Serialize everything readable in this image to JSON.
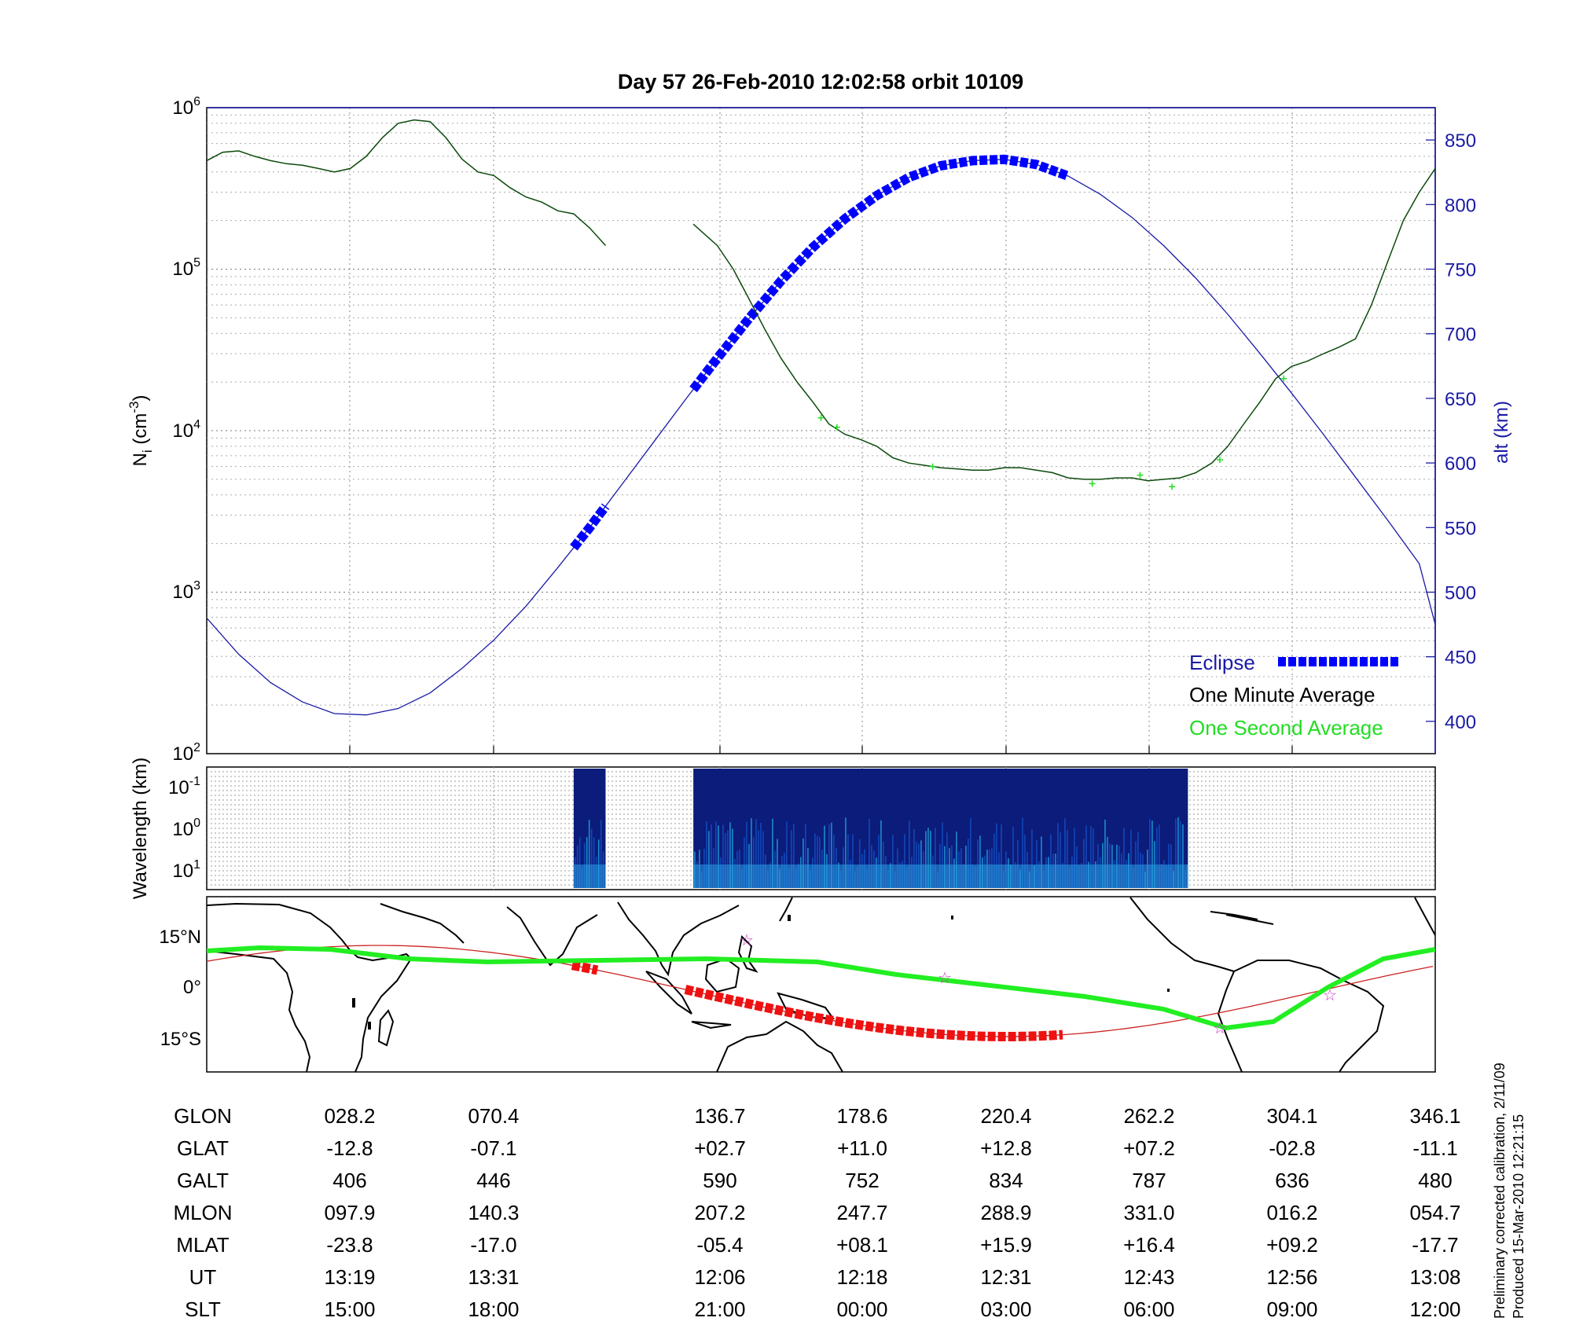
{
  "title": "Day 57  26-Feb-2010 12:02:58   orbit 10109",
  "colors": {
    "altitude": "#1a1aa6",
    "eclipse": "#0000ff",
    "one_minute": "#0b4a0b",
    "one_second": "#22dd22",
    "track": "#cc2222",
    "dip_equator": "#22ee22",
    "spectrogram_bg": "#0b1c7a",
    "stars": "#cc33cc"
  },
  "chart_data": [
    {
      "type": "line",
      "name": "density",
      "ylabel": "N_i (cm^-3)",
      "y_log": true,
      "ylim": [
        100,
        1000000
      ],
      "y_ticks": [
        "10^2",
        "10^3",
        "10^4",
        "10^5",
        "10^6"
      ],
      "y2label": "alt (km)",
      "y2lim": [
        375,
        875
      ],
      "y2_ticks": [
        "400",
        "450",
        "500",
        "550",
        "600",
        "650",
        "700",
        "750",
        "800",
        "850"
      ],
      "x_range_minutes": [
        0,
        77
      ],
      "grid": true,
      "legend": {
        "position": "bottom-right",
        "entries": [
          "Eclipse",
          "One Minute Average",
          "One Second Average"
        ]
      },
      "series": [
        {
          "name": "One Minute Average",
          "segments": [
            [
              [
                0,
                470000
              ],
              [
                1,
                530000
              ],
              [
                2,
                540000
              ],
              [
                3,
                500000
              ],
              [
                4,
                470000
              ],
              [
                5,
                450000
              ],
              [
                6,
                440000
              ],
              [
                7,
                420000
              ],
              [
                8,
                400000
              ],
              [
                9,
                420000
              ],
              [
                10,
                500000
              ],
              [
                11,
                650000
              ],
              [
                12,
                800000
              ],
              [
                13,
                840000
              ],
              [
                14,
                820000
              ],
              [
                15,
                650000
              ],
              [
                16,
                480000
              ],
              [
                17,
                400000
              ],
              [
                18,
                380000
              ],
              [
                19,
                320000
              ],
              [
                20,
                280000
              ],
              [
                21,
                260000
              ],
              [
                22,
                230000
              ],
              [
                23,
                220000
              ],
              [
                24,
                180000
              ],
              [
                25,
                140000
              ]
            ],
            [
              [
                30.5,
                190000
              ],
              [
                32,
                140000
              ],
              [
                33,
                100000
              ],
              [
                34,
                65000
              ],
              [
                35,
                42000
              ],
              [
                36,
                28000
              ],
              [
                37,
                20000
              ],
              [
                38,
                15000
              ],
              [
                39,
                11000
              ],
              [
                40,
                9500
              ],
              [
                41,
                8800
              ],
              [
                42,
                8000
              ],
              [
                43,
                6800
              ],
              [
                44,
                6300
              ],
              [
                45,
                6100
              ],
              [
                46,
                5900
              ],
              [
                47,
                5800
              ],
              [
                48,
                5700
              ],
              [
                49,
                5700
              ],
              [
                50,
                5900
              ],
              [
                51,
                5900
              ],
              [
                52,
                5700
              ],
              [
                53,
                5500
              ],
              [
                54,
                5100
              ],
              [
                55,
                5000
              ],
              [
                56,
                5000
              ],
              [
                57,
                5100
              ],
              [
                58,
                5100
              ],
              [
                59,
                4900
              ],
              [
                60,
                5000
              ],
              [
                61,
                5100
              ],
              [
                62,
                5500
              ],
              [
                63,
                6300
              ],
              [
                64,
                8000
              ],
              [
                65,
                11000
              ],
              [
                66,
                15000
              ],
              [
                67,
                21000
              ],
              [
                68,
                25000
              ],
              [
                69,
                27000
              ],
              [
                70,
                30000
              ],
              [
                71,
                33000
              ],
              [
                72,
                37000
              ],
              [
                73,
                60000
              ],
              [
                74,
                110000
              ],
              [
                75,
                200000
              ],
              [
                76,
                300000
              ],
              [
                77,
                420000
              ]
            ]
          ]
        },
        {
          "name": "One Second Average",
          "points": [
            [
              38.5,
              12000
            ],
            [
              39.5,
              10500
            ],
            [
              45.5,
              6000
            ],
            [
              55.5,
              4700
            ],
            [
              58.5,
              5300
            ],
            [
              60.5,
              4500
            ],
            [
              63.5,
              6600
            ],
            [
              67.5,
              21000
            ]
          ]
        },
        {
          "name": "Altitude",
          "x": [
            0,
            2,
            4,
            6,
            8,
            10,
            12,
            14,
            16,
            18,
            20,
            22,
            24,
            26,
            28,
            30,
            32,
            34,
            36,
            38,
            40,
            42,
            44,
            46,
            48,
            50,
            52,
            54,
            56,
            58,
            60,
            62,
            64,
            66,
            68,
            70,
            72,
            74,
            76,
            77
          ],
          "values": [
            480,
            452,
            430,
            415,
            406,
            405,
            410,
            422,
            441,
            463,
            489,
            519,
            550,
            583,
            616,
            649,
            681,
            712,
            741,
            767,
            789,
            807,
            821,
            830,
            834,
            835,
            831,
            822,
            808,
            790,
            768,
            743,
            715,
            685,
            654,
            622,
            589,
            556,
            522,
            475
          ]
        },
        {
          "name": "Eclipse",
          "x_ranges": [
            [
              23,
              25
            ],
            [
              30.5,
              54
            ]
          ]
        }
      ]
    },
    {
      "type": "heatmap",
      "name": "spectrogram",
      "ylabel": "Wavelength (km)",
      "y_ticks": [
        "10^-1",
        "10^0",
        "10^1"
      ],
      "data_x_ranges": [
        [
          23,
          25
        ],
        [
          30.5,
          61.5
        ]
      ]
    },
    {
      "type": "map",
      "name": "ground-track",
      "y_ticks": [
        "15°N",
        "0°",
        "15°S"
      ],
      "series": [
        "satellite track",
        "eclipse",
        "magnetic dip equator",
        "stars"
      ]
    }
  ],
  "ephemeris": {
    "row_labels": [
      "GLON",
      "GLAT",
      "GALT",
      "MLON",
      "MLAT",
      "UT",
      "SLT"
    ],
    "columns": [
      [
        "028.2",
        "-12.8",
        "406",
        "097.9",
        "-23.8",
        "13:19",
        "15:00"
      ],
      [
        "070.4",
        "-07.1",
        "446",
        "140.3",
        "-17.0",
        "13:31",
        "18:00"
      ],
      [
        "136.7",
        "+02.7",
        "590",
        "207.2",
        "-05.4",
        "12:06",
        "21:00"
      ],
      [
        "178.6",
        "+11.0",
        "752",
        "247.7",
        "+08.1",
        "12:18",
        "00:00"
      ],
      [
        "220.4",
        "+12.8",
        "834",
        "288.9",
        "+15.9",
        "12:31",
        "03:00"
      ],
      [
        "262.2",
        "+07.2",
        "787",
        "331.0",
        "+16.4",
        "12:43",
        "06:00"
      ],
      [
        "304.1",
        "-02.8",
        "636",
        "016.2",
        "+09.2",
        "12:56",
        "09:00"
      ],
      [
        "346.1",
        "-11.1",
        "480",
        "054.7",
        "-17.7",
        "13:08",
        "12:00"
      ]
    ]
  },
  "footnotes": {
    "calibration": "Preliminary corrected calibration, 2/11/09",
    "produced": "Produced 15-Mar-2010 12:21:15"
  }
}
